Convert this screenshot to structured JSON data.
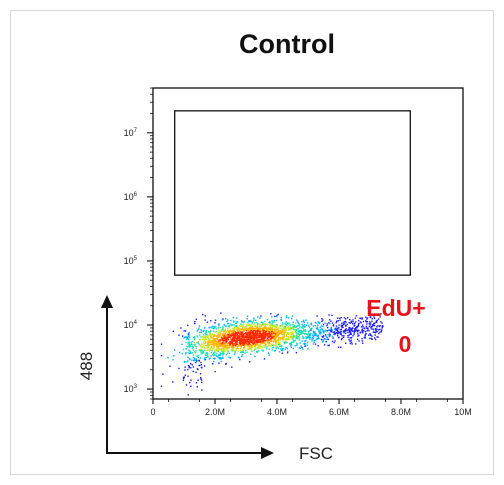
{
  "chart_data": {
    "type": "scatter",
    "title": "Control",
    "xlabel": "FSC",
    "ylabel": "488",
    "x_axis": {
      "scale": "linear",
      "range": [
        0,
        10000000
      ],
      "ticks": [
        {
          "value": 0,
          "label": "0"
        },
        {
          "value": 2000000,
          "label": "2.0M"
        },
        {
          "value": 4000000,
          "label": "4.0M"
        },
        {
          "value": 6000000,
          "label": "6.0M"
        },
        {
          "value": 8000000,
          "label": "8.0M"
        },
        {
          "value": 10000000,
          "label": "10M"
        }
      ]
    },
    "y_axis": {
      "scale": "log",
      "range": [
        700,
        50000000
      ],
      "ticks": [
        {
          "value": 1000,
          "base": "10",
          "exp": "3"
        },
        {
          "value": 10000,
          "base": "10",
          "exp": "4"
        },
        {
          "value": 100000,
          "base": "10",
          "exp": "5"
        },
        {
          "value": 1000000,
          "base": "10",
          "exp": "6"
        },
        {
          "value": 10000000,
          "base": "10",
          "exp": "7"
        }
      ]
    },
    "gate": {
      "name": "EdU+",
      "count": "0",
      "x_range": [
        700000,
        8300000
      ],
      "y_range": [
        60000,
        22000000
      ],
      "color": "#111111"
    },
    "density_cloud": {
      "colormap": [
        "#1a1aff",
        "#00b0ff",
        "#19e0b0",
        "#c8e61e",
        "#ffb400",
        "#ff2a00"
      ],
      "population": {
        "x_range": [
          250000,
          7400000
        ],
        "y_peak": 9500,
        "y_spread": "log-normal around ~1e4",
        "mode_x": 3000000
      }
    },
    "label_color": "#e8141b",
    "grid": false
  }
}
